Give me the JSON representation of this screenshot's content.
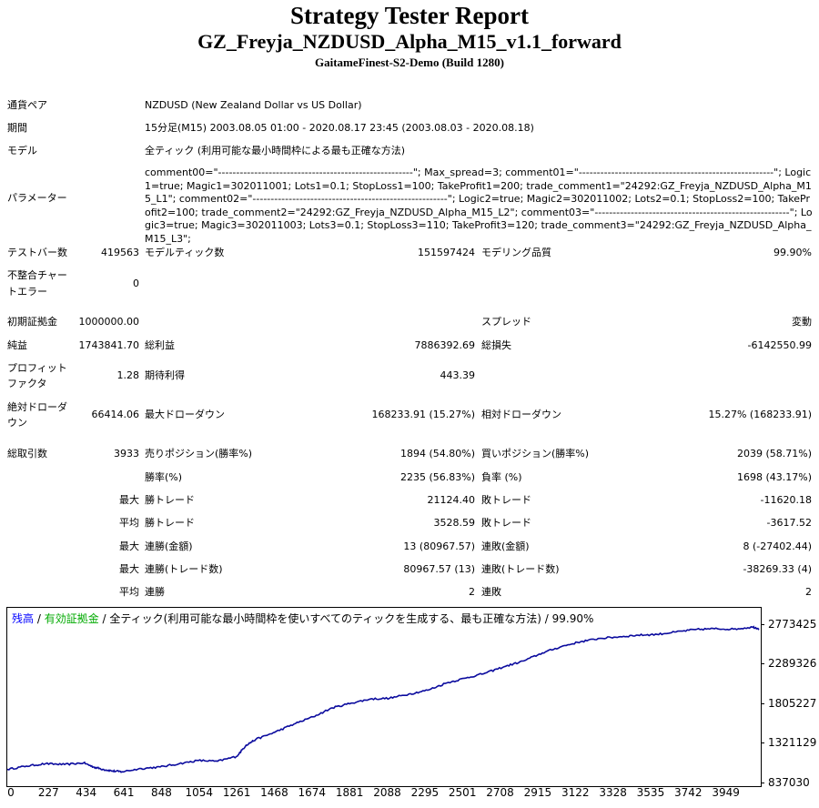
{
  "report": {
    "title": "Strategy Tester Report",
    "ea_name": "GZ_Freyja_NZDUSD_Alpha_M15_v1.1_forward",
    "server": "GaitameFinest-S2-Demo (Build 1280)"
  },
  "info": {
    "symbol_label": "通貨ペア",
    "symbol_value": "NZDUSD (New Zealand Dollar vs US Dollar)",
    "period_label": "期間",
    "period_value": "15分足(M15) 2003.08.05 01:00 - 2020.08.17 23:45 (2003.08.03 - 2020.08.18)",
    "model_label": "モデル",
    "model_value": "全ティック (利用可能な最小時間枠による最も正確な方法)",
    "params_label": "パラメーター",
    "params_value": "comment00=\"------------------------------------------------------\"; Max_spread=3; comment01=\"------------------------------------------------------\"; Logic1=true; Magic1=302011001; Lots1=0.1; StopLoss1=100; TakeProfit1=200; trade_comment1=\"24292:GZ_Freyja_NZDUSD_Alpha_M15_L1\"; comment02=\"------------------------------------------------------\"; Logic2=true; Magic2=302011002; Lots2=0.1; StopLoss2=100; TakeProfit2=100; trade_comment2=\"24292:GZ_Freyja_NZDUSD_Alpha_M15_L2\"; comment03=\"------------------------------------------------------\"; Logic3=true; Magic3=302011003; Lots3=0.1; StopLoss3=110; TakeProfit3=120; trade_comment3=\"24292:GZ_Freyja_NZDUSD_Alpha_M15_L3\";"
  },
  "stats": {
    "bars_label": "テストバー数",
    "bars_value": "419563",
    "ticks_label": "モデルティック数",
    "ticks_value": "151597424",
    "quality_label": "モデリング品質",
    "quality_value": "99.90%",
    "mismatch_label_1": "不整合チャー",
    "mismatch_label_2": "トエラー",
    "mismatch_value": "0",
    "deposit_label": "初期証拠金",
    "deposit_value": "1000000.00",
    "spread_label": "スプレッド",
    "spread_value": "変動",
    "net_label": "純益",
    "net_value": "1743841.70",
    "gross_profit_label": "総利益",
    "gross_profit_value": "7886392.69",
    "gross_loss_label": "総損失",
    "gross_loss_value": "-6142550.99",
    "pf_label_1": "プロフィット",
    "pf_label_2": "ファクタ",
    "pf_value": "1.28",
    "payoff_label": "期待利得",
    "payoff_value": "443.39",
    "abs_dd_label_1": "絶対ドローダ",
    "abs_dd_label_2": "ウン",
    "abs_dd_value": "66414.06",
    "max_dd_label": "最大ドローダウン",
    "max_dd_value": "168233.91 (15.27%)",
    "rel_dd_label": "相対ドローダウン",
    "rel_dd_value": "15.27% (168233.91)",
    "total_label": "総取引数",
    "total_value": "3933",
    "short_label": "売りポジション(勝率%)",
    "short_value": "1894 (54.80%)",
    "long_label": "買いポジション(勝率%)",
    "long_value": "2039 (58.71%)",
    "winrate_label": "勝率(%)",
    "winrate_value": "2235 (56.83%)",
    "lossrate_label": "負率 (%)",
    "lossrate_value": "1698 (43.17%)",
    "max_word": "最大",
    "avg_word": "平均",
    "win_trade_label": "勝トレード",
    "loss_trade_label": "敗トレード",
    "max_win_value": "21124.40",
    "max_loss_value": "-11620.18",
    "avg_win_value": "3528.59",
    "avg_loss_value": "-3617.52",
    "consec_win_amt_label": "連勝(金額)",
    "consec_win_amt_value": "13 (80967.57)",
    "consec_loss_amt_label": "連敗(金額)",
    "consec_loss_amt_value": "8 (-27402.44)",
    "consec_win_cnt_label": "連勝(トレード数)",
    "consec_win_cnt_value": "80967.57 (13)",
    "consec_loss_cnt_label": "連敗(トレード数)",
    "consec_loss_cnt_value": "-38269.33 (4)",
    "avg_consec_win_label": "連勝",
    "avg_consec_win_value": "2",
    "avg_consec_loss_label": "連敗",
    "avg_consec_loss_value": "2"
  },
  "chart_data": {
    "type": "line",
    "legend": {
      "balance": "残高",
      "sep1": " / ",
      "equity": "有効証拠金",
      "sep2": " / ",
      "desc": "全ティック(利用可能な最小時間枠を使いすべてのティックを生成する、最も正確な方法) / 99.90%"
    },
    "colors": {
      "balance": "#0000ff",
      "equity": "#00aa00",
      "line": "#0b0b9e"
    },
    "y_ticks": [
      "2773425",
      "2289326",
      "1805227",
      "1321129",
      "837030"
    ],
    "x_ticks": [
      "0",
      "227",
      "434",
      "641",
      "848",
      "1054",
      "1261",
      "1468",
      "1674",
      "1881",
      "2088",
      "2295",
      "2501",
      "2708",
      "2915",
      "3122",
      "3328",
      "3535",
      "3742",
      "3949"
    ],
    "xlim": [
      0,
      3933
    ],
    "ylim": [
      837030,
      2773425
    ],
    "x": [
      0,
      100,
      200,
      300,
      400,
      450,
      500,
      550,
      600,
      700,
      800,
      900,
      1000,
      1100,
      1200,
      1250,
      1300,
      1400,
      1500,
      1600,
      1700,
      1800,
      1900,
      2000,
      2100,
      2200,
      2300,
      2400,
      2500,
      2600,
      2700,
      2800,
      2900,
      3000,
      3100,
      3200,
      3300,
      3400,
      3500,
      3600,
      3700,
      3800,
      3900,
      3933
    ],
    "y": [
      1000000,
      1040000,
      1070000,
      1060000,
      1080000,
      1030000,
      1000000,
      980000,
      970000,
      1010000,
      1030000,
      1070000,
      1110000,
      1100000,
      1160000,
      1300000,
      1370000,
      1460000,
      1560000,
      1650000,
      1760000,
      1820000,
      1870000,
      1880000,
      1930000,
      1980000,
      2070000,
      2130000,
      2190000,
      2270000,
      2340000,
      2440000,
      2520000,
      2580000,
      2620000,
      2640000,
      2660000,
      2670000,
      2700000,
      2730000,
      2740000,
      2735000,
      2760000,
      2743000
    ]
  }
}
